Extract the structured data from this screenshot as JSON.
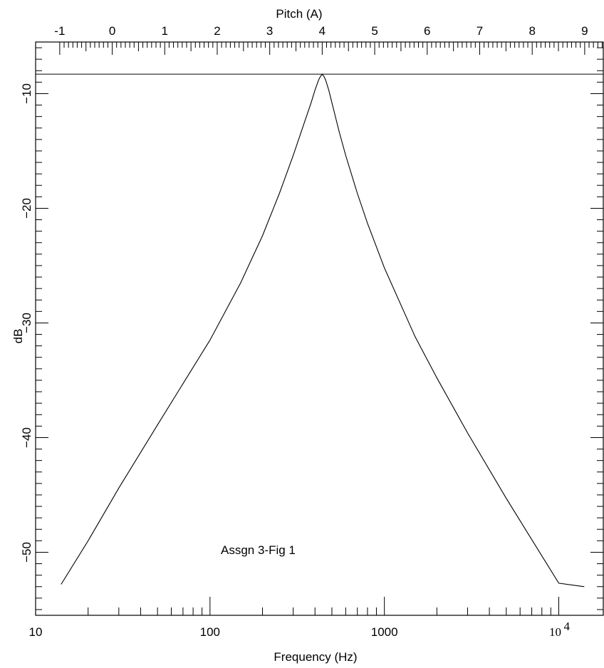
{
  "chart_data": {
    "type": "line",
    "xlabel": "Frequency (Hz)",
    "x_scale": "log",
    "xlim": [
      10,
      18000
    ],
    "x_ticks": [
      {
        "value": 10,
        "label": "10"
      },
      {
        "value": 100,
        "label": "100"
      },
      {
        "value": 1000,
        "label": "1000"
      },
      {
        "value": 10000,
        "label": "10",
        "exponent": "4"
      }
    ],
    "top_axis": {
      "label": "Pitch (A)",
      "tick_labels": [
        "-1",
        "0",
        "1",
        "2",
        "3",
        "4",
        "5",
        "6",
        "7",
        "8",
        "9"
      ],
      "reference_hz": 440
    },
    "ylabel": "dB",
    "ylim": [
      -55.5,
      -5.5
    ],
    "y_ticks": [
      -10,
      -20,
      -30,
      -40,
      -50
    ],
    "y_tick_labels": [
      "−10",
      "−20",
      "−30",
      "−40",
      "−50"
    ],
    "reference_line_y": -8.3,
    "annotation": "Assgn 3-Fig 1",
    "series": [
      {
        "x": [
          14,
          20,
          30,
          50,
          70,
          100,
          150,
          200,
          250,
          300,
          350,
          380,
          400,
          420,
          430,
          440,
          450,
          460,
          480,
          500,
          550,
          600,
          700,
          800,
          1000,
          1500,
          2000,
          3000,
          5000,
          7000,
          10000,
          14000
        ],
        "y": [
          -52.8,
          -49.0,
          -44.4,
          -38.9,
          -35.3,
          -31.5,
          -26.5,
          -22.4,
          -18.7,
          -15.4,
          -12.4,
          -10.8,
          -9.7,
          -8.8,
          -8.5,
          -8.3,
          -8.5,
          -8.8,
          -9.7,
          -10.8,
          -13.3,
          -15.4,
          -18.7,
          -21.3,
          -25.2,
          -31.2,
          -34.8,
          -39.6,
          -45.3,
          -48.9,
          -52.7,
          -53.0
        ]
      }
    ]
  }
}
